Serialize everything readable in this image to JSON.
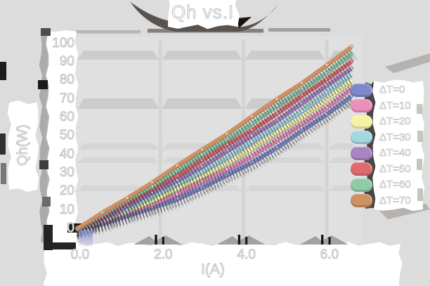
{
  "title": "Qh vs.I",
  "colors": {
    "page_bg": "#dbdcdb",
    "plot_bg": "#dfe0df",
    "grid_band": "#c9cac9",
    "panel": "#ffffff",
    "shadow_dark": "#59534f",
    "text_fill": "#ffffff",
    "text_outline": "#c2c2c2"
  },
  "chart_data": {
    "type": "line",
    "title": "Qh vs.I",
    "xlabel": "I(A)",
    "ylabel": "Qh(W)",
    "xlim": [
      0,
      6.8
    ],
    "ylim": [
      0,
      103
    ],
    "grid": true,
    "legend_position": "right",
    "x_tick_labels": [
      "0.0",
      "2.0",
      "4.0",
      "6.0"
    ],
    "x_tick_values": [
      0,
      2,
      4,
      6
    ],
    "y_tick_values": [
      0,
      10,
      20,
      30,
      40,
      50,
      60,
      70,
      80,
      90,
      100
    ],
    "x": [
      0,
      0.6,
      1.2,
      1.8,
      2.4,
      3.0,
      3.6,
      4.2,
      4.8,
      5.4,
      6.0,
      6.6
    ],
    "series": [
      {
        "name": "ΔT=0",
        "color": "#7f89c9",
        "values": [
          0,
          3.0,
          6.8,
          11.2,
          16.4,
          22.2,
          28.7,
          36.0,
          43.9,
          52.6,
          61.9,
          72.0
        ]
      },
      {
        "name": "ΔT=10",
        "color": "#ec8fbd",
        "values": [
          0,
          3.8,
          8.2,
          13.2,
          18.8,
          25.1,
          32.0,
          39.5,
          47.6,
          56.4,
          65.7,
          75.7
        ]
      },
      {
        "name": "ΔT=20",
        "color": "#f6f2a4",
        "values": [
          0,
          4.5,
          9.6,
          15.2,
          21.3,
          28.0,
          35.2,
          43.0,
          51.3,
          60.1,
          69.5,
          79.4
        ]
      },
      {
        "name": "ΔT=30",
        "color": "#a3d8e0",
        "values": [
          0,
          5.3,
          11.0,
          17.2,
          23.8,
          30.9,
          38.5,
          46.5,
          55.0,
          63.9,
          73.3,
          83.1
        ]
      },
      {
        "name": "ΔT=40",
        "color": "#aa83c3",
        "values": [
          0,
          6.0,
          12.4,
          19.2,
          26.3,
          33.8,
          41.7,
          50.0,
          58.7,
          67.7,
          77.1,
          86.9
        ]
      },
      {
        "name": "ΔT=50",
        "color": "#de6a6e",
        "values": [
          0,
          6.8,
          13.8,
          21.2,
          28.8,
          36.8,
          45.0,
          53.5,
          62.3,
          71.5,
          80.9,
          90.6
        ]
      },
      {
        "name": "ΔT=60",
        "color": "#8fcba6",
        "values": [
          0,
          7.5,
          15.2,
          23.2,
          31.3,
          39.7,
          48.2,
          57.0,
          66.0,
          75.2,
          84.7,
          94.3
        ]
      },
      {
        "name": "ΔT=70",
        "color": "#ce9065",
        "values": [
          0,
          8.3,
          16.6,
          25.2,
          33.8,
          42.6,
          51.5,
          60.5,
          69.7,
          79.0,
          88.4,
          98.0
        ]
      }
    ]
  }
}
